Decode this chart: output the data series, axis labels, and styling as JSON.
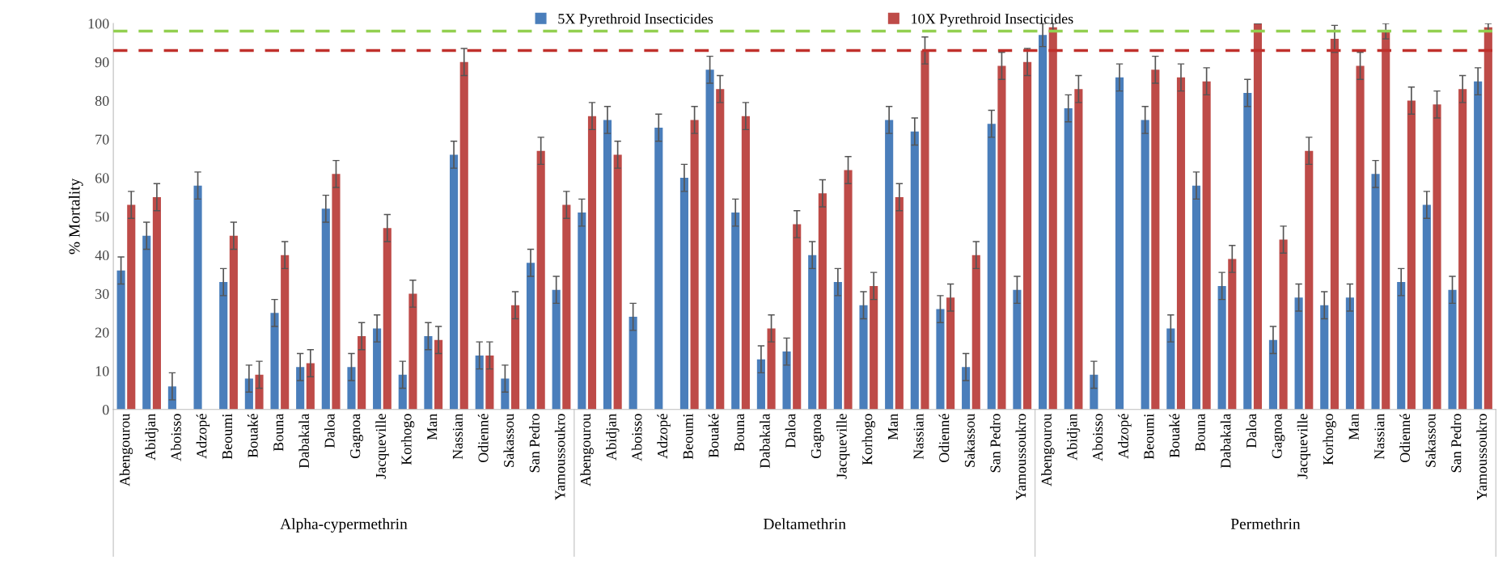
{
  "chart_data": {
    "type": "bar",
    "ylabel": "% Mortality",
    "categories": [
      "Abengourou",
      "Abidjan",
      "Aboisso",
      "Adzopé",
      "Beoumi",
      "Bouaké",
      "Bouna",
      "Dabakala",
      "Daloa",
      "Gagnoa",
      "Jacqueville",
      "Korhogo",
      "Man",
      "Nassian",
      "Odienné",
      "Sakassou",
      "San Pedro",
      "Yamoussoukro",
      "Abengourou",
      "Abidjan",
      "Aboisso",
      "Adzopé",
      "Beoumi",
      "Bouaké",
      "Bouna",
      "Dabakala",
      "Daloa",
      "Gagnoa",
      "Jacqueville",
      "Korhogo",
      "Man",
      "Nassian",
      "Odienné",
      "Sakassou",
      "San Pedro",
      "Yamoussoukro",
      "Abengourou",
      "Abidjan",
      "Aboisso",
      "Adzopé",
      "Beoumi",
      "Bouaké",
      "Bouna",
      "Dabakala",
      "Daloa",
      "Gagnoa",
      "Jacqueville",
      "Korhogo",
      "Man",
      "Nassian",
      "Odienné",
      "Sakassou",
      "San Pedro",
      "Yamoussoukro"
    ],
    "series": [
      {
        "name": "5X Pyrethroid Insecticides",
        "color": "#4a7ebb",
        "values": [
          36,
          45,
          6,
          58,
          33,
          8,
          25,
          11,
          52,
          11,
          21,
          9,
          19,
          66,
          14,
          8,
          38,
          31,
          51,
          75,
          24,
          73,
          60,
          88,
          51,
          13,
          15,
          40,
          33,
          27,
          75,
          72,
          26,
          11,
          74,
          31,
          97,
          78,
          9,
          86,
          75,
          21,
          58,
          32,
          82,
          18,
          29,
          27,
          29,
          61,
          33,
          53,
          31,
          85
        ],
        "errors": [
          3.5,
          3.5,
          3.5,
          3.5,
          3.5,
          3.5,
          3.5,
          3.5,
          3.5,
          3.5,
          3.5,
          3.5,
          3.5,
          3.5,
          3.5,
          3.5,
          3.5,
          3.5,
          3.5,
          3.5,
          3.5,
          3.5,
          3.5,
          3.5,
          3.5,
          3.5,
          3.5,
          3.5,
          3.5,
          3.5,
          3.5,
          3.5,
          3.5,
          3.5,
          3.5,
          3.5,
          3,
          3.5,
          3.5,
          3.5,
          3.5,
          3.5,
          3.5,
          3.5,
          3.5,
          3.5,
          3.5,
          3.5,
          3.5,
          3.5,
          3.5,
          3.5,
          3.5,
          3.5
        ]
      },
      {
        "name": "10X Pyrethroid Insecticides",
        "color": "#be4b48",
        "values": [
          53,
          55,
          null,
          null,
          45,
          9,
          40,
          12,
          61,
          19,
          47,
          30,
          18,
          90,
          14,
          27,
          67,
          53,
          76,
          66,
          null,
          null,
          75,
          83,
          76,
          21,
          48,
          56,
          62,
          32,
          55,
          93,
          29,
          40,
          89,
          90,
          99,
          83,
          null,
          null,
          88,
          86,
          85,
          39,
          100,
          44,
          67,
          96,
          89,
          98,
          80,
          79,
          83,
          99
        ],
        "errors": [
          3.5,
          3.5,
          null,
          null,
          3.5,
          3.5,
          3.5,
          3.5,
          3.5,
          3.5,
          3.5,
          3.5,
          3.5,
          3.5,
          3.5,
          3.5,
          3.5,
          3.5,
          3.5,
          3.5,
          null,
          null,
          3.5,
          3.5,
          3.5,
          3.5,
          3.5,
          3.5,
          3.5,
          3.5,
          3.5,
          3.5,
          3.5,
          3.5,
          3.5,
          3.5,
          1,
          3.5,
          null,
          null,
          3.5,
          3.5,
          3.5,
          3.5,
          0,
          3.5,
          3.5,
          3.5,
          3.5,
          2,
          3.5,
          3.5,
          3.5,
          1
        ]
      }
    ],
    "ylim": [
      0,
      100
    ],
    "yticks": [
      0,
      10,
      20,
      30,
      40,
      50,
      60,
      70,
      80,
      90,
      100
    ],
    "grid": false,
    "legend": "top",
    "ref_lines": [
      {
        "axis": "y",
        "value": 98,
        "label": null,
        "color": "#92d050",
        "line_style": "dashed"
      },
      {
        "axis": "y",
        "value": 93,
        "label": null,
        "color": "#c0302c",
        "line_style": "dashed"
      }
    ],
    "annotations": [
      "Alpha-cypermethrin",
      "Deltamethrin",
      "Permethrin"
    ]
  }
}
